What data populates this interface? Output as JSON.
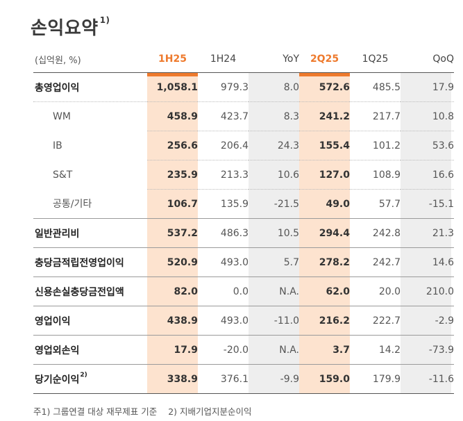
{
  "title": "손익요약",
  "title_sup": "1)",
  "colors": {
    "accent": "#ee7a2d",
    "highlight": "#fde3cf",
    "neutral_shade": "#eeeeee"
  },
  "table": {
    "unit_label": "(십억원, %)",
    "headers": [
      "1H25",
      "1H24",
      "YoY",
      "2Q25",
      "1Q25",
      "QoQ"
    ],
    "rows": [
      {
        "label": "총영업이익",
        "sup": "",
        "level": "main",
        "values": [
          "1,058.1",
          "979.3",
          "8.0",
          "572.6",
          "485.5",
          "17.9"
        ]
      },
      {
        "label": "WM",
        "sup": "",
        "level": "sub",
        "values": [
          "458.9",
          "423.7",
          "8.3",
          "241.2",
          "217.7",
          "10.8"
        ]
      },
      {
        "label": "IB",
        "sup": "",
        "level": "sub",
        "values": [
          "256.6",
          "206.4",
          "24.3",
          "155.4",
          "101.2",
          "53.6"
        ]
      },
      {
        "label": "S&T",
        "sup": "",
        "level": "sub",
        "values": [
          "235.9",
          "213.3",
          "10.6",
          "127.0",
          "108.9",
          "16.6"
        ]
      },
      {
        "label": "공통/기타",
        "sup": "",
        "level": "sub",
        "values": [
          "106.7",
          "135.9",
          "-21.5",
          "49.0",
          "57.7",
          "-15.1"
        ]
      },
      {
        "label": "일반관리비",
        "sup": "",
        "level": "main",
        "values": [
          "537.2",
          "486.3",
          "10.5",
          "294.4",
          "242.8",
          "21.3"
        ]
      },
      {
        "label": "충당금적립전영업이익",
        "sup": "",
        "level": "main",
        "values": [
          "520.9",
          "493.0",
          "5.7",
          "278.2",
          "242.7",
          "14.6"
        ]
      },
      {
        "label": "신용손실충당금전입액",
        "sup": "",
        "level": "main",
        "values": [
          "82.0",
          "0.0",
          "N.A.",
          "62.0",
          "20.0",
          "210.0"
        ]
      },
      {
        "label": "영업이익",
        "sup": "",
        "level": "main",
        "values": [
          "438.9",
          "493.0",
          "-11.0",
          "216.2",
          "222.7",
          "-2.9"
        ]
      },
      {
        "label": "영업외손익",
        "sup": "",
        "level": "main",
        "values": [
          "17.9",
          "-20.0",
          "N.A.",
          "3.7",
          "14.2",
          "-73.9"
        ]
      },
      {
        "label": "당기순이익",
        "sup": "2)",
        "level": "main",
        "values": [
          "338.9",
          "376.1",
          "-9.9",
          "159.0",
          "179.9",
          "-11.6"
        ]
      }
    ]
  },
  "footnotes": [
    "주1) 그룹연결 대상 재무제표 기준",
    "2) 지배기업지분순이익"
  ]
}
